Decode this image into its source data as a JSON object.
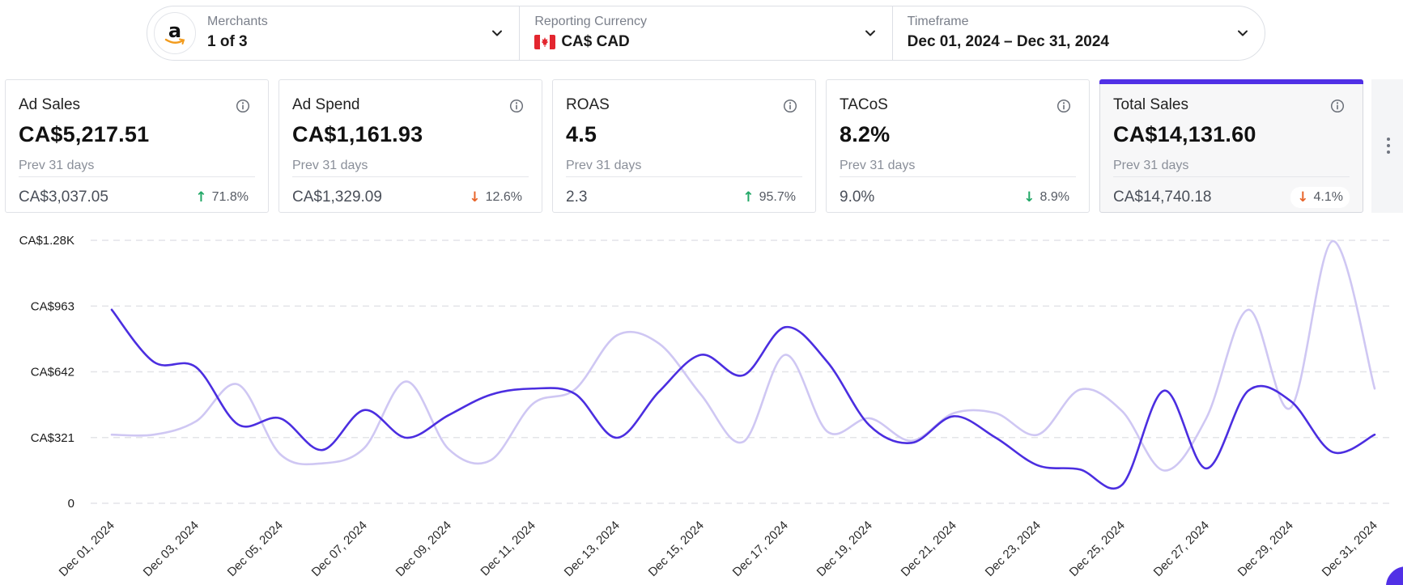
{
  "filters": {
    "merchants": {
      "label": "Merchants",
      "value": "1 of 3",
      "logo_letter": "a"
    },
    "currency": {
      "label": "Reporting Currency",
      "value": "CA$ CAD",
      "flag": "canada-flag-icon"
    },
    "timeframe": {
      "label": "Timeframe",
      "value": "Dec 01, 2024 – Dec 31, 2024"
    }
  },
  "kpis": [
    {
      "title": "Ad Sales",
      "value": "CA$5,217.51",
      "prev_label": "Prev 31 days",
      "prev_value": "CA$3,037.05",
      "change": "71.8%",
      "direction": "up",
      "active": false
    },
    {
      "title": "Ad Spend",
      "value": "CA$1,161.93",
      "prev_label": "Prev 31 days",
      "prev_value": "CA$1,329.09",
      "change": "12.6%",
      "direction": "down-bad",
      "active": false
    },
    {
      "title": "ROAS",
      "value": "4.5",
      "prev_label": "Prev 31 days",
      "prev_value": "2.3",
      "change": "95.7%",
      "direction": "up",
      "active": false
    },
    {
      "title": "TACoS",
      "value": "8.2%",
      "prev_label": "Prev 31 days",
      "prev_value": "9.0%",
      "change": "8.9%",
      "direction": "down-good",
      "active": false
    },
    {
      "title": "Total Sales",
      "value": "CA$14,131.60",
      "prev_label": "Prev 31 days",
      "prev_value": "CA$14,740.18",
      "change": "4.1%",
      "direction": "down-bad",
      "active": true
    }
  ],
  "colors": {
    "accent": "#5130e6",
    "series_current": "#4b2ee0",
    "series_previous": "#cfc7f3",
    "up": "#22a867",
    "down_bad": "#e8652b",
    "down_good": "#22a867"
  },
  "chart_data": {
    "type": "line",
    "x": [
      "Dec 01, 2024",
      "Dec 02, 2024",
      "Dec 03, 2024",
      "Dec 04, 2024",
      "Dec 05, 2024",
      "Dec 06, 2024",
      "Dec 07, 2024",
      "Dec 08, 2024",
      "Dec 09, 2024",
      "Dec 10, 2024",
      "Dec 11, 2024",
      "Dec 12, 2024",
      "Dec 13, 2024",
      "Dec 14, 2024",
      "Dec 15, 2024",
      "Dec 16, 2024",
      "Dec 17, 2024",
      "Dec 18, 2024",
      "Dec 19, 2024",
      "Dec 20, 2024",
      "Dec 21, 2024",
      "Dec 22, 2024",
      "Dec 23, 2024",
      "Dec 24, 2024",
      "Dec 25, 2024",
      "Dec 26, 2024",
      "Dec 27, 2024",
      "Dec 28, 2024",
      "Dec 29, 2024",
      "Dec 30, 2024",
      "Dec 31, 2024"
    ],
    "tick_labels": [
      "Dec 01, 2024",
      "Dec 03, 2024",
      "Dec 05, 2024",
      "Dec 07, 2024",
      "Dec 09, 2024",
      "Dec 11, 2024",
      "Dec 13, 2024",
      "Dec 15, 2024",
      "Dec 17, 2024",
      "Dec 19, 2024",
      "Dec 21, 2024",
      "Dec 23, 2024",
      "Dec 25, 2024",
      "Dec 27, 2024",
      "Dec 29, 2024",
      "Dec 31, 2024"
    ],
    "series": [
      {
        "name": "Total Sales (current)",
        "values": [
          945,
          690,
          665,
          385,
          415,
          260,
          455,
          320,
          430,
          530,
          560,
          535,
          320,
          545,
          725,
          625,
          860,
          690,
          380,
          295,
          425,
          320,
          185,
          165,
          90,
          550,
          170,
          550,
          500,
          250,
          335
        ]
      },
      {
        "name": "Total Sales (previous)",
        "values": [
          335,
          335,
          400,
          580,
          240,
          195,
          270,
          595,
          265,
          210,
          485,
          555,
          820,
          780,
          530,
          300,
          725,
          350,
          415,
          305,
          440,
          440,
          335,
          555,
          450,
          160,
          415,
          945,
          465,
          1280,
          560
        ]
      }
    ],
    "y_ticks": [
      "0",
      "CA$321",
      "CA$642",
      "CA$963",
      "CA$1.28K"
    ],
    "y_tick_values": [
      0,
      321,
      642,
      963,
      1284
    ],
    "ylim": [
      0,
      1284
    ],
    "grid": true,
    "legend": "none"
  }
}
